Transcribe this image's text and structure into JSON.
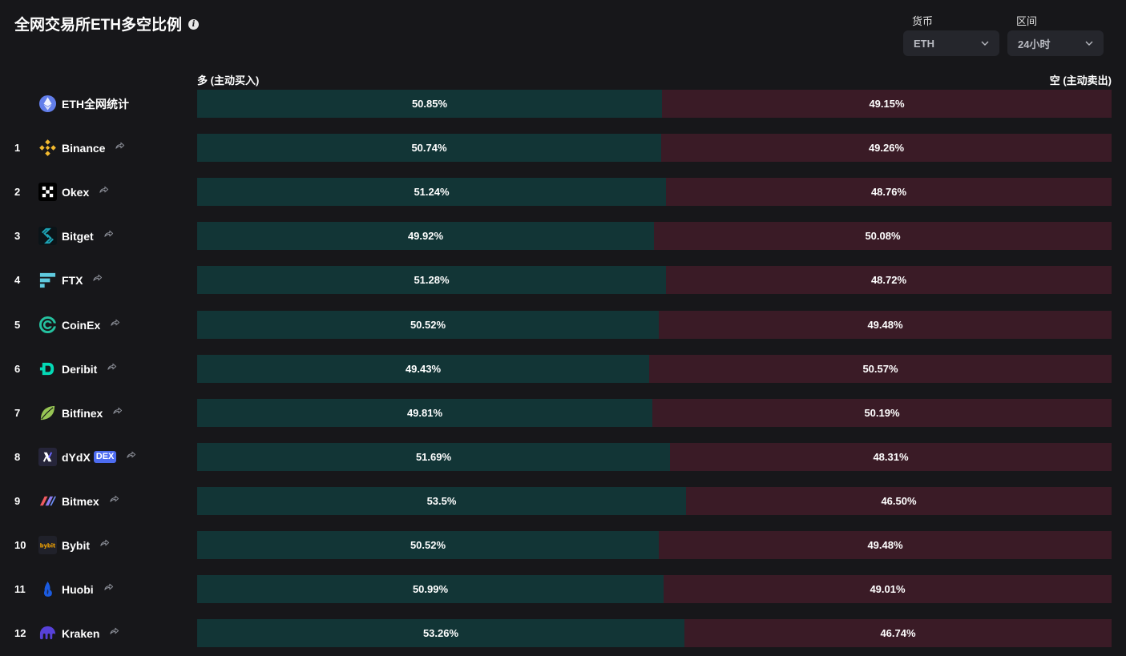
{
  "header": {
    "title": "全网交易所ETH多空比例",
    "info_icon": "info-icon"
  },
  "filters": {
    "currency": {
      "label": "货币",
      "value": "ETH"
    },
    "interval": {
      "label": "区间",
      "value": "24小时"
    }
  },
  "columns": {
    "long": "多 (主动买入)",
    "short": "空 (主动卖出)"
  },
  "colors": {
    "background": "#17171a",
    "long": "#123536",
    "short": "#3a1b26",
    "dex_badge": "#4d6cf0"
  },
  "rows": [
    {
      "rank": "",
      "name": "ETH全网统计",
      "icon": "ethereum-icon",
      "long": 50.85,
      "short": 49.15,
      "long_label": "50.85%",
      "short_label": "49.15%"
    },
    {
      "rank": "1",
      "name": "Binance",
      "icon": "binance-icon",
      "long": 50.74,
      "short": 49.26,
      "long_label": "50.74%",
      "short_label": "49.26%"
    },
    {
      "rank": "2",
      "name": "Okex",
      "icon": "okex-icon",
      "long": 51.24,
      "short": 48.76,
      "long_label": "51.24%",
      "short_label": "48.76%"
    },
    {
      "rank": "3",
      "name": "Bitget",
      "icon": "bitget-icon",
      "long": 49.92,
      "short": 50.08,
      "long_label": "49.92%",
      "short_label": "50.08%"
    },
    {
      "rank": "4",
      "name": "FTX",
      "icon": "ftx-icon",
      "long": 51.28,
      "short": 48.72,
      "long_label": "51.28%",
      "short_label": "48.72%"
    },
    {
      "rank": "5",
      "name": "CoinEx",
      "icon": "coinex-icon",
      "long": 50.52,
      "short": 49.48,
      "long_label": "50.52%",
      "short_label": "49.48%"
    },
    {
      "rank": "6",
      "name": "Deribit",
      "icon": "deribit-icon",
      "long": 49.43,
      "short": 50.57,
      "long_label": "49.43%",
      "short_label": "50.57%"
    },
    {
      "rank": "7",
      "name": "Bitfinex",
      "icon": "bitfinex-icon",
      "long": 49.81,
      "short": 50.19,
      "long_label": "49.81%",
      "short_label": "50.19%"
    },
    {
      "rank": "8",
      "name": "dYdX",
      "badge": "DEX",
      "icon": "dydx-icon",
      "long": 51.69,
      "short": 48.31,
      "long_label": "51.69%",
      "short_label": "48.31%"
    },
    {
      "rank": "9",
      "name": "Bitmex",
      "icon": "bitmex-icon",
      "long": 53.5,
      "short": 46.5,
      "long_label": "53.5%",
      "short_label": "46.50%"
    },
    {
      "rank": "10",
      "name": "Bybit",
      "icon": "bybit-icon",
      "long": 50.52,
      "short": 49.48,
      "long_label": "50.52%",
      "short_label": "49.48%"
    },
    {
      "rank": "11",
      "name": "Huobi",
      "icon": "huobi-icon",
      "long": 50.99,
      "short": 49.01,
      "long_label": "50.99%",
      "short_label": "49.01%"
    },
    {
      "rank": "12",
      "name": "Kraken",
      "icon": "kraken-icon",
      "long": 53.26,
      "short": 46.74,
      "long_label": "53.26%",
      "short_label": "46.74%"
    }
  ]
}
